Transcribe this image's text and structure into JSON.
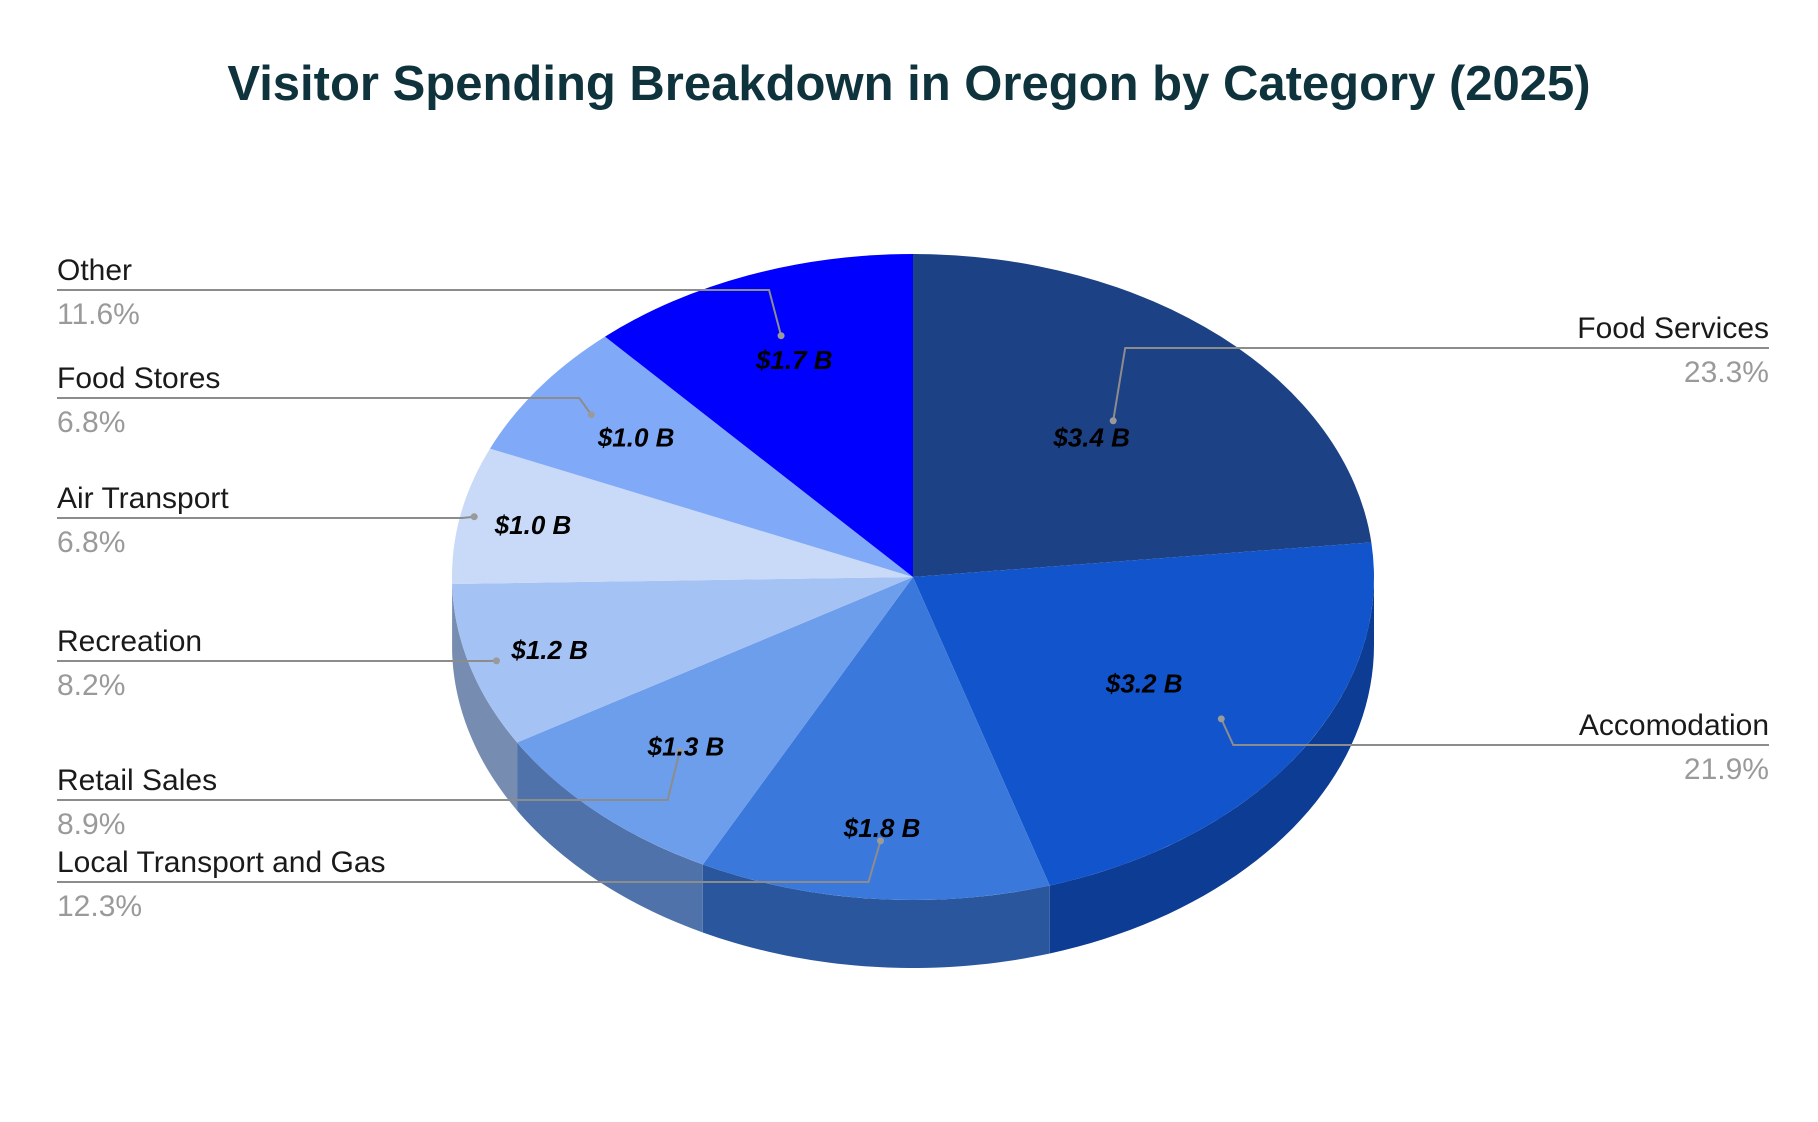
{
  "chart_data": {
    "type": "pie",
    "title": "Visitor Spending Breakdown in Oregon by Category (2025)",
    "legend_placement": "outside-labels",
    "three_d": true,
    "slices": [
      {
        "name": "Food Services",
        "value_label": "$3.4 B",
        "value": 3.4,
        "percent": 23.3,
        "percent_label": "23.3%",
        "color": "#1d4185"
      },
      {
        "name": "Accomodation",
        "value_label": "$3.2 B",
        "value": 3.2,
        "percent": 21.9,
        "percent_label": "21.9%",
        "color": "#1154cc"
      },
      {
        "name": "Local Transport and Gas",
        "value_label": "$1.8 B",
        "value": 1.8,
        "percent": 12.3,
        "percent_label": "12.3%",
        "color": "#3b78dc"
      },
      {
        "name": "Retail Sales",
        "value_label": "$1.3 B",
        "value": 1.3,
        "percent": 8.9,
        "percent_label": "8.9%",
        "color": "#6d9eeb"
      },
      {
        "name": "Recreation",
        "value_label": "$1.2 B",
        "value": 1.2,
        "percent": 8.2,
        "percent_label": "8.2%",
        "color": "#a4c2f4"
      },
      {
        "name": "Air Transport",
        "value_label": "$1.0 B",
        "value": 1.0,
        "percent": 6.8,
        "percent_label": "6.8%",
        "color": "#c9daf8"
      },
      {
        "name": "Food Stores",
        "value_label": "$1.0 B",
        "value": 1.0,
        "percent": 6.8,
        "percent_label": "6.8%",
        "color": "#80aaf7"
      },
      {
        "name": "Other",
        "value_label": "$1.7 B",
        "value": 1.7,
        "percent": 11.6,
        "percent_label": "11.6%",
        "color": "#0000ff"
      }
    ]
  }
}
